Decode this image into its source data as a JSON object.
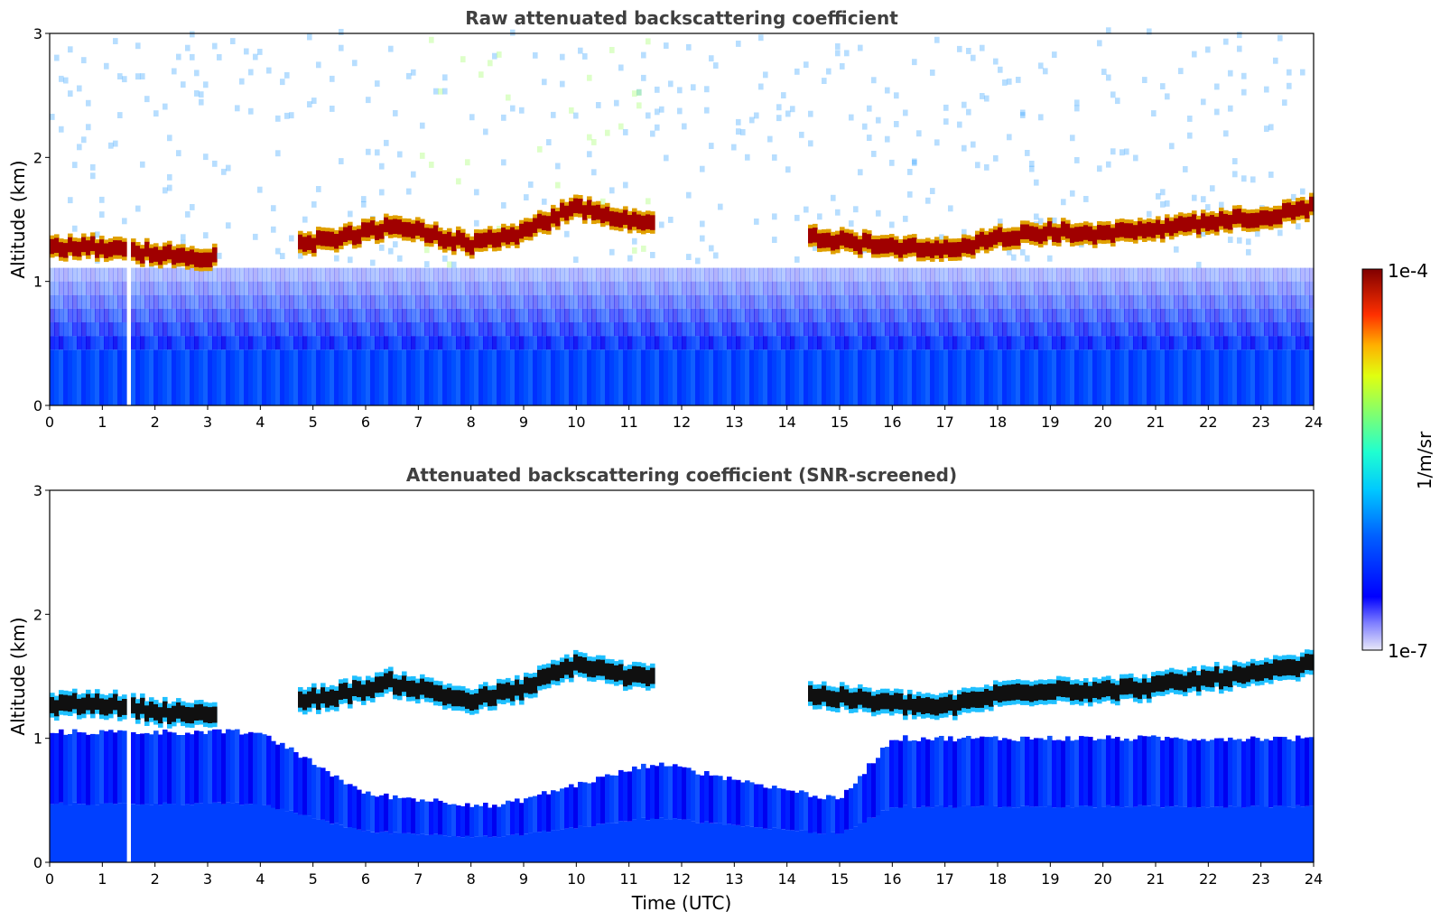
{
  "chart_data": [
    {
      "type": "heatmap",
      "title": "Raw attenuated backscattering coefficient",
      "xlabel": "",
      "ylabel": "Altitude (km)",
      "xlim": [
        0,
        24
      ],
      "ylim": [
        0,
        3
      ],
      "x_ticks": [
        "0",
        "1",
        "2",
        "3",
        "4",
        "5",
        "6",
        "7",
        "8",
        "9",
        "10",
        "11",
        "12",
        "13",
        "14",
        "15",
        "16",
        "17",
        "18",
        "19",
        "20",
        "21",
        "22",
        "23",
        "24"
      ],
      "y_ticks": [
        "0",
        "1",
        "2",
        "3"
      ],
      "data_gaps_hours": [
        [
          1.43,
          1.55
        ]
      ],
      "cloud_layer": {
        "description_points": [
          {
            "time": 0.0,
            "altitude_km": 1.27
          },
          {
            "time": 1.0,
            "altitude_km": 1.28
          },
          {
            "time": 2.0,
            "altitude_km": 1.22
          },
          {
            "time": 3.0,
            "altitude_km": 1.18
          },
          {
            "time": 5.5,
            "altitude_km": 1.35
          },
          {
            "time": 6.5,
            "altitude_km": 1.45
          },
          {
            "time": 8.0,
            "altitude_km": 1.3
          },
          {
            "time": 9.0,
            "altitude_km": 1.4
          },
          {
            "time": 10.0,
            "altitude_km": 1.6
          },
          {
            "time": 11.0,
            "altitude_km": 1.5
          },
          {
            "time": 14.5,
            "altitude_km": 1.35
          },
          {
            "time": 16.0,
            "altitude_km": 1.28
          },
          {
            "time": 17.0,
            "altitude_km": 1.25
          },
          {
            "time": 18.0,
            "altitude_km": 1.35
          },
          {
            "time": 19.0,
            "altitude_km": 1.4
          },
          {
            "time": 20.0,
            "altitude_km": 1.38
          },
          {
            "time": 21.0,
            "altitude_km": 1.42
          },
          {
            "time": 22.0,
            "altitude_km": 1.48
          },
          {
            "time": 23.0,
            "altitude_km": 1.52
          },
          {
            "time": 24.0,
            "altitude_km": 1.6
          }
        ],
        "cloud_free_hours": [
          [
            3.2,
            4.7
          ],
          [
            11.5,
            14.4
          ]
        ]
      }
    },
    {
      "type": "heatmap",
      "title": "Attenuated backscattering coefficient (SNR-screened)",
      "xlabel": "Time (UTC)",
      "ylabel": "Altitude (km)",
      "xlim": [
        0,
        24
      ],
      "ylim": [
        0,
        3
      ],
      "x_ticks": [
        "0",
        "1",
        "2",
        "3",
        "4",
        "5",
        "6",
        "7",
        "8",
        "9",
        "10",
        "11",
        "12",
        "13",
        "14",
        "15",
        "16",
        "17",
        "18",
        "19",
        "20",
        "21",
        "22",
        "23",
        "24"
      ],
      "y_ticks": [
        "0",
        "1",
        "2",
        "3"
      ],
      "data_gaps_hours": [
        [
          1.43,
          1.55
        ]
      ],
      "boundary_layer_top_km": [
        {
          "time": 0.0,
          "altitude_km": 1.05
        },
        {
          "time": 4.0,
          "altitude_km": 1.05
        },
        {
          "time": 6.0,
          "altitude_km": 0.55
        },
        {
          "time": 8.5,
          "altitude_km": 0.45
        },
        {
          "time": 11.5,
          "altitude_km": 0.8
        },
        {
          "time": 15.0,
          "altitude_km": 0.5
        },
        {
          "time": 16.0,
          "altitude_km": 1.0
        },
        {
          "time": 24.0,
          "altitude_km": 1.0
        }
      ]
    }
  ],
  "colorbar": {
    "label": "1/m/sr",
    "max_label": "1e-4",
    "min_label": "1e-7",
    "scale": "log",
    "colormap": "jet"
  }
}
